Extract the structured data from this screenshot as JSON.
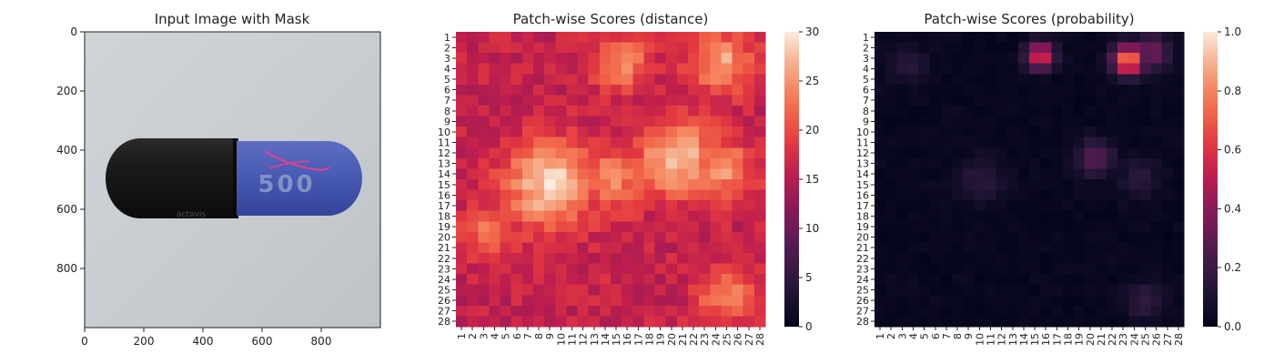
{
  "figure": {
    "panels": [
      {
        "title": "Input Image with Mask",
        "type": "image",
        "xlim": [
          0,
          1000
        ],
        "ylim": [
          0,
          1000
        ],
        "xticks": [
          0,
          200,
          400,
          600,
          800
        ],
        "yticks": [
          0,
          200,
          400,
          600,
          800
        ],
        "image_elements": {
          "capsule_print": "500",
          "brand_print": "actavis",
          "cap_color": "#141414",
          "body_color": "#4457b0",
          "mask_color": "#e83c8b",
          "background_color": "#c7ccd0"
        }
      },
      {
        "title": "Patch-wise Scores (distance)",
        "type": "heatmap",
        "colormap": "rocket",
        "vmin": 0,
        "vmax": 30,
        "colorbar_ticks": [
          "0",
          "5",
          "10",
          "15",
          "20",
          "25",
          "30"
        ]
      },
      {
        "title": "Patch-wise Scores (probability)",
        "type": "heatmap",
        "colormap": "rocket",
        "vmin": 0,
        "vmax": 1,
        "colorbar_ticks": [
          "0.0",
          "0.2",
          "0.4",
          "0.6",
          "0.8",
          "1.0"
        ]
      }
    ]
  },
  "chart_data": [
    {
      "type": "heatmap",
      "title": "Patch-wise Scores (distance)",
      "rows": [
        "1",
        "2",
        "3",
        "4",
        "5",
        "6",
        "7",
        "8",
        "9",
        "10",
        "11",
        "12",
        "13",
        "14",
        "15",
        "16",
        "17",
        "18",
        "19",
        "20",
        "21",
        "22",
        "23",
        "24",
        "25",
        "26",
        "27",
        "28"
      ],
      "cols": [
        "1",
        "2",
        "3",
        "4",
        "5",
        "6",
        "7",
        "8",
        "9",
        "10",
        "11",
        "12",
        "13",
        "14",
        "15",
        "16",
        "17",
        "18",
        "19",
        "20",
        "21",
        "22",
        "23",
        "24",
        "25",
        "26",
        "27",
        "28"
      ],
      "value_range": [
        0,
        30
      ],
      "base_level": 16,
      "hotspots": [
        {
          "row": 3.5,
          "col": 15.5,
          "peak": 24,
          "spread": 1.8
        },
        {
          "row": 3.5,
          "col": 24.5,
          "peak": 26,
          "spread": 2.0
        },
        {
          "row": 12.5,
          "col": 20.5,
          "peak": 28,
          "spread": 2.5
        },
        {
          "row": 13.5,
          "col": 24.5,
          "peak": 25,
          "spread": 2.0
        },
        {
          "row": 15,
          "col": 9,
          "peak": 29,
          "spread": 2.8
        },
        {
          "row": 14.5,
          "col": 14.5,
          "peak": 24,
          "spread": 2.2
        },
        {
          "row": 19.5,
          "col": 3.5,
          "peak": 24,
          "spread": 1.6
        },
        {
          "row": 25.5,
          "col": 25,
          "peak": 24,
          "spread": 1.8
        }
      ]
    },
    {
      "type": "heatmap",
      "title": "Patch-wise Scores (probability)",
      "rows": [
        "1",
        "2",
        "3",
        "4",
        "5",
        "6",
        "7",
        "8",
        "9",
        "10",
        "11",
        "12",
        "13",
        "14",
        "15",
        "16",
        "17",
        "18",
        "19",
        "20",
        "21",
        "22",
        "23",
        "24",
        "25",
        "26",
        "27",
        "28"
      ],
      "cols": [
        "1",
        "2",
        "3",
        "4",
        "5",
        "6",
        "7",
        "8",
        "9",
        "10",
        "11",
        "12",
        "13",
        "14",
        "15",
        "16",
        "17",
        "18",
        "19",
        "20",
        "21",
        "22",
        "23",
        "24",
        "25",
        "26",
        "27",
        "28"
      ],
      "value_range": [
        0,
        1
      ],
      "base_level": 0.02,
      "hotspots": [
        {
          "row": 2.8,
          "col": 15.5,
          "peak": 0.62,
          "spread": 0.9
        },
        {
          "row": 3.2,
          "col": 23.5,
          "peak": 0.8,
          "spread": 1.0
        },
        {
          "row": 2.5,
          "col": 25.5,
          "peak": 0.35,
          "spread": 1.2
        },
        {
          "row": 3.5,
          "col": 3.5,
          "peak": 0.15,
          "spread": 1.2
        },
        {
          "row": 12.5,
          "col": 20.5,
          "peak": 0.28,
          "spread": 1.2
        },
        {
          "row": 14.5,
          "col": 10,
          "peak": 0.15,
          "spread": 1.5
        },
        {
          "row": 14.5,
          "col": 24.5,
          "peak": 0.15,
          "spread": 1.3
        },
        {
          "row": 26,
          "col": 25,
          "peak": 0.18,
          "spread": 1.2
        }
      ]
    }
  ]
}
